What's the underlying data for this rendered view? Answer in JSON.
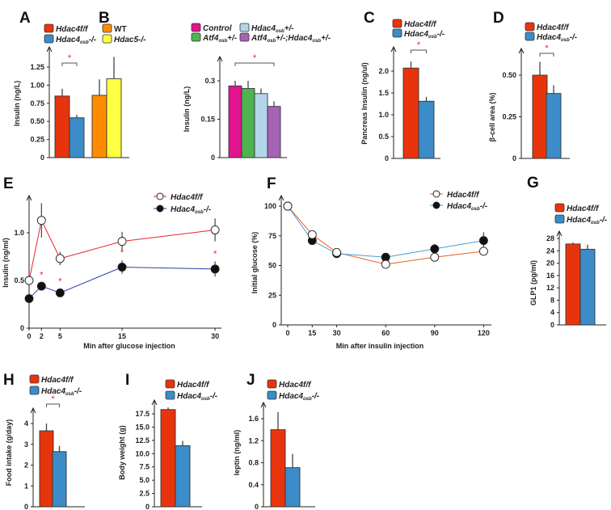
{
  "colors": {
    "red": "#e8340c",
    "blue": "#3b8cc8",
    "orange": "#ff8c00",
    "yellow": "#ffff44",
    "magenta": "#e0148c",
    "green": "#4fb350",
    "lightblue": "#b3d5ea",
    "purple": "#a463b3",
    "line_red": "#e8242c",
    "line_blue": "#2a3fa0",
    "line_orange": "#f05a1e",
    "line_lightblue": "#4a9fd8"
  },
  "chart_data": [
    {
      "panel": "A",
      "type": "bar",
      "ylabel": "Insulin (ng/L)",
      "yticks": [
        "0",
        "0.25",
        "0.50",
        "0.75",
        "1.00",
        "1.25"
      ],
      "ytick_values": [
        0,
        0.25,
        0.5,
        0.75,
        1.0,
        1.25
      ],
      "legend": [
        {
          "text": "Hdac4f/f",
          "italic": true,
          "color": "red"
        },
        {
          "text": "Hdac4",
          "sub": "osb",
          "suffix": "-/-",
          "italic": true,
          "color": "blue"
        },
        {
          "text": "WT",
          "italic": false,
          "color": "orange"
        },
        {
          "text": "Hdac5-/-",
          "italic": true,
          "color": "yellow"
        }
      ],
      "values": [
        0.85,
        0.55,
        0.86,
        1.09
      ],
      "errors": [
        0.1,
        0.04,
        0.22,
        0.3
      ],
      "significance": [
        {
          "from": 0,
          "to": 1,
          "label": "*"
        }
      ]
    },
    {
      "panel": "B",
      "type": "bar",
      "ylabel": "Insulin (ng/L)",
      "yticks": [
        "0",
        "0.15",
        "0.3"
      ],
      "ytick_values": [
        0,
        0.15,
        0.3
      ],
      "legend": [
        {
          "text": "Control",
          "italic": true,
          "color": "magenta"
        },
        {
          "text": "Atf4",
          "sub": "osb",
          "suffix": "+/-",
          "italic": true,
          "color": "green"
        },
        {
          "text": "Hdac4",
          "sub": "osb",
          "suffix": "+/-",
          "italic": true,
          "color": "lightblue"
        },
        {
          "text": "Atf4",
          "sub": "osb",
          "suffix": "+/-;Hdac4",
          "sub2": "osb",
          "suffix2": "+/-",
          "italic": true,
          "color": "purple"
        }
      ],
      "values": [
        0.28,
        0.27,
        0.25,
        0.2
      ],
      "errors": [
        0.02,
        0.03,
        0.02,
        0.02
      ],
      "significance": [
        {
          "from": 0,
          "to": 3,
          "label": "*"
        }
      ]
    },
    {
      "panel": "C",
      "type": "bar",
      "ylabel": "Pancreas Insulin (ng/ul)",
      "yticks": [
        "0",
        "0.5",
        "1.0",
        "1.5",
        "2.0"
      ],
      "ytick_values": [
        0,
        0.5,
        1.0,
        1.5,
        2.0
      ],
      "legend": [
        {
          "text": "Hdac4f/f",
          "italic": true,
          "color": "red"
        },
        {
          "text": "Hdac4",
          "sub": "osb",
          "suffix": "-/-",
          "italic": true,
          "color": "blue"
        }
      ],
      "values": [
        2.07,
        1.31
      ],
      "errors": [
        0.15,
        0.1
      ],
      "significance": [
        {
          "from": 0,
          "to": 1,
          "label": "*"
        }
      ]
    },
    {
      "panel": "D",
      "type": "bar",
      "ylabel": "β-cell area (%)",
      "yticks": [
        "0",
        "0.25",
        "0.50"
      ],
      "ytick_values": [
        0,
        0.25,
        0.5
      ],
      "legend": [
        {
          "text": "Hdac4f/f",
          "italic": true,
          "color": "red"
        },
        {
          "text": "Hdac4",
          "sub": "osb",
          "suffix": "-/-",
          "italic": true,
          "color": "blue"
        }
      ],
      "values": [
        0.5,
        0.39
      ],
      "errors": [
        0.08,
        0.05
      ],
      "significance": [
        {
          "from": 0,
          "to": 1,
          "label": "*"
        }
      ]
    },
    {
      "panel": "E",
      "type": "line",
      "ylabel": "Insulin (ng/ml)",
      "xlabel": "Min after glucose injection",
      "yticks": [
        "0",
        "0.5",
        "1.0"
      ],
      "ytick_values": [
        0,
        0.5,
        1.0
      ],
      "x": [
        0,
        2,
        5,
        15,
        30
      ],
      "xticks": [
        "0",
        "2",
        "5",
        "15",
        "30"
      ],
      "series": [
        {
          "name": "Hdac4f/f",
          "marker": "open",
          "color": "line_red",
          "values": [
            0.5,
            1.13,
            0.73,
            0.91,
            1.03
          ],
          "errors": [
            0.02,
            0.18,
            0.07,
            0.1,
            0.12
          ]
        },
        {
          "name": "Hdac4",
          "sub": "osb",
          "suffix": "-/-",
          "marker": "filled",
          "color": "line_blue",
          "values": [
            0.31,
            0.44,
            0.37,
            0.64,
            0.62
          ],
          "errors": [
            0.02,
            0.04,
            0.04,
            0.07,
            0.08
          ]
        }
      ],
      "significance_x": [
        2,
        5,
        15,
        30
      ]
    },
    {
      "panel": "F",
      "type": "line",
      "ylabel": "Initial glucose (%)",
      "xlabel": "Min after insulin injection",
      "yticks": [
        "0",
        "25",
        "50",
        "75",
        "100"
      ],
      "ytick_values": [
        0,
        25,
        50,
        75,
        100
      ],
      "x": [
        0,
        15,
        30,
        60,
        90,
        120
      ],
      "xticks": [
        "0",
        "15",
        "30",
        "60",
        "90",
        "120"
      ],
      "series": [
        {
          "name": "Hdac4f/f",
          "marker": "open",
          "color": "line_orange",
          "values": [
            100,
            76,
            61,
            51,
            57,
            62
          ],
          "errors": [
            1,
            2,
            2,
            2,
            2,
            3
          ]
        },
        {
          "name": "Hdac4",
          "sub": "osb",
          "suffix": "-/-",
          "marker": "filled",
          "color": "line_lightblue",
          "values": [
            100,
            71,
            60,
            57,
            64,
            71
          ],
          "errors": [
            1,
            2,
            2,
            2,
            4,
            7
          ]
        }
      ]
    },
    {
      "panel": "G",
      "type": "bar",
      "ylabel": "GLP1 (pg/ml)",
      "yticks": [
        "0",
        "4",
        "8",
        "12",
        "16",
        "20",
        "24",
        "28"
      ],
      "ytick_values": [
        0,
        4,
        8,
        12,
        16,
        20,
        24,
        28
      ],
      "legend": [
        {
          "text": "Hdac4f/f",
          "italic": true,
          "color": "red"
        },
        {
          "text": "Hdac4",
          "sub": "osb",
          "suffix": "-/-",
          "italic": true,
          "color": "blue"
        }
      ],
      "values": [
        26.2,
        24.5
      ],
      "errors": [
        0.5,
        1.5
      ],
      "significance": []
    },
    {
      "panel": "H",
      "type": "bar",
      "ylabel": "Food intake (g/day)",
      "yticks": [
        "0",
        "1",
        "2",
        "3",
        "4"
      ],
      "ytick_values": [
        0,
        1,
        2,
        3,
        4
      ],
      "legend": [
        {
          "text": "Hdac4f/f",
          "italic": true,
          "color": "red"
        },
        {
          "text": "Hdac4",
          "sub": "osb",
          "suffix": "-/-",
          "italic": true,
          "color": "blue"
        }
      ],
      "values": [
        3.65,
        2.65
      ],
      "errors": [
        0.35,
        0.28
      ],
      "significance": [
        {
          "from": 0,
          "to": 1,
          "label": "*"
        }
      ]
    },
    {
      "panel": "I",
      "type": "bar",
      "ylabel": "Body weight (g)",
      "yticks": [
        "0",
        "2.5",
        "5.0",
        "7.5",
        "10.0",
        "12.5",
        "15.0",
        "17.5"
      ],
      "ytick_values": [
        0,
        2.5,
        5,
        7.5,
        10,
        12.5,
        15,
        17.5
      ],
      "legend": [
        {
          "text": "Hdac4f/f",
          "italic": true,
          "color": "red"
        },
        {
          "text": "Hdac4",
          "sub": "osb",
          "suffix": "-/-",
          "italic": true,
          "color": "blue"
        }
      ],
      "values": [
        18.3,
        11.5
      ],
      "errors": [
        0.4,
        0.9
      ],
      "significance": []
    },
    {
      "panel": "J",
      "type": "bar",
      "ylabel": "leptin (ng/ml)",
      "yticks": [
        "0",
        "0.4",
        "0.8",
        "1.2",
        "1.6"
      ],
      "ytick_values": [
        0,
        0.4,
        0.8,
        1.2,
        1.6
      ],
      "legend": [
        {
          "text": "Hdac4f/f",
          "italic": true,
          "color": "red"
        },
        {
          "text": "Hdac4",
          "sub": "osb",
          "suffix": "-/-",
          "italic": true,
          "color": "blue"
        }
      ],
      "values": [
        1.4,
        0.71
      ],
      "errors": [
        0.32,
        0.25
      ],
      "significance": []
    }
  ]
}
